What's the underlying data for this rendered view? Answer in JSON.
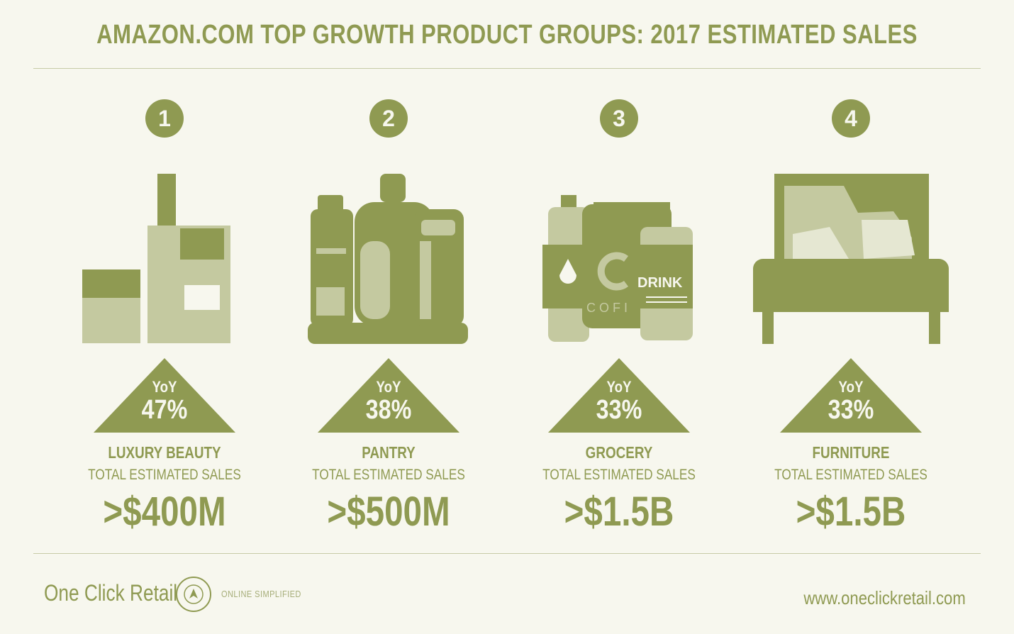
{
  "title": "AMAZON.COM TOP GROWTH PRODUCT GROUPS: 2017 ESTIMATED SALES",
  "accent_color": "#8f9a52",
  "background_color": "#f7f7ee",
  "groups": [
    {
      "rank": "1",
      "yoy_label": "YoY",
      "yoy_value": "47%",
      "category": "LUXURY BEAUTY",
      "sales_label": "TOTAL ESTIMATED SALES",
      "sales_value": ">$400M",
      "icon": "luxury-beauty-bottles-icon"
    },
    {
      "rank": "2",
      "yoy_label": "YoY",
      "yoy_value": "38%",
      "category": "PANTRY",
      "sales_label": "TOTAL ESTIMATED SALES",
      "sales_value": ">$500M",
      "icon": "pantry-bottles-icon"
    },
    {
      "rank": "3",
      "yoy_label": "YoY",
      "yoy_value": "33%",
      "category": "GROCERY",
      "sales_label": "TOTAL ESTIMATED SALES",
      "sales_value": ">$1.5B",
      "icon": "grocery-drinks-icon",
      "icon_text": {
        "drink": "DRINK",
        "cofi": "C O F I"
      }
    },
    {
      "rank": "4",
      "yoy_label": "YoY",
      "yoy_value": "33%",
      "category": "FURNITURE",
      "sales_label": "TOTAL ESTIMATED SALES",
      "sales_value": ">$1.5B",
      "icon": "bed-furniture-icon"
    }
  ],
  "footer": {
    "brand": "One Click Retail",
    "tagline": "ONLINE SIMPLIFIED",
    "website": "www.oneclickretail.com",
    "logo_icon": "compass-logo-icon"
  }
}
